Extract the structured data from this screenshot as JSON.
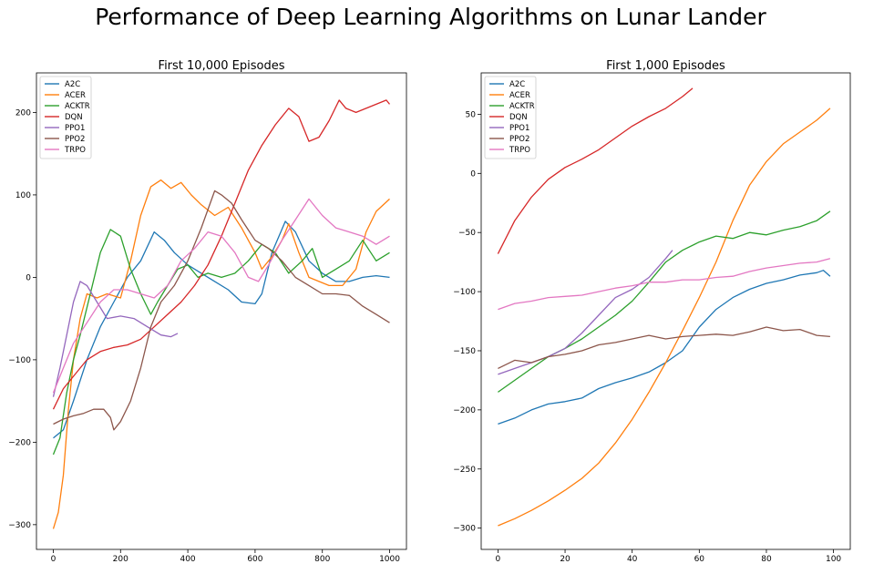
{
  "figure": {
    "title": "Performance of Deep Learning Algorithms on Lunar Lander"
  },
  "chart_data": [
    {
      "type": "line",
      "title": "First 10,000 Episodes",
      "xlabel": "",
      "ylabel": "",
      "xlim": [
        -50,
        1050
      ],
      "ylim": [
        -330,
        248
      ],
      "xticks": [
        0,
        200,
        400,
        600,
        800,
        1000
      ],
      "yticks": [
        -300,
        -200,
        -100,
        0,
        100,
        200
      ],
      "grid": false,
      "legend_position": "top-left",
      "series": [
        {
          "name": "A2C",
          "color": "#1f77b4",
          "x": [
            0,
            30,
            60,
            100,
            140,
            180,
            220,
            260,
            300,
            330,
            360,
            400,
            440,
            480,
            520,
            560,
            600,
            620,
            650,
            690,
            720,
            760,
            800,
            840,
            880,
            920,
            960,
            1000
          ],
          "y": [
            -195,
            -185,
            -150,
            -100,
            -60,
            -30,
            0,
            20,
            55,
            45,
            30,
            15,
            5,
            -5,
            -15,
            -30,
            -32,
            -20,
            30,
            68,
            55,
            20,
            5,
            -5,
            -5,
            0,
            2,
            0
          ]
        },
        {
          "name": "ACER",
          "color": "#ff7f0e",
          "x": [
            0,
            15,
            30,
            45,
            60,
            80,
            100,
            130,
            160,
            200,
            230,
            260,
            290,
            320,
            350,
            380,
            410,
            440,
            480,
            520,
            560,
            600,
            620,
            650,
            680,
            700,
            730,
            760,
            790,
            820,
            860,
            900,
            930,
            960,
            1000
          ],
          "y": [
            -305,
            -285,
            -240,
            -160,
            -100,
            -50,
            -20,
            -25,
            -20,
            -25,
            20,
            75,
            110,
            118,
            108,
            115,
            100,
            88,
            75,
            85,
            60,
            30,
            10,
            25,
            45,
            65,
            30,
            0,
            -5,
            -10,
            -10,
            10,
            55,
            80,
            95
          ]
        },
        {
          "name": "ACKTR",
          "color": "#2ca02c",
          "x": [
            0,
            20,
            40,
            60,
            80,
            110,
            140,
            170,
            200,
            230,
            260,
            290,
            310,
            340,
            370,
            400,
            430,
            460,
            500,
            540,
            580,
            620,
            660,
            700,
            740,
            770,
            800,
            840,
            880,
            920,
            960,
            1000
          ],
          "y": [
            -215,
            -195,
            -140,
            -100,
            -70,
            -20,
            30,
            58,
            50,
            10,
            -20,
            -45,
            -30,
            -10,
            10,
            15,
            0,
            5,
            0,
            5,
            20,
            40,
            30,
            5,
            20,
            35,
            0,
            10,
            20,
            45,
            20,
            30
          ]
        },
        {
          "name": "DQN",
          "color": "#d62728",
          "x": [
            0,
            30,
            60,
            100,
            140,
            180,
            220,
            260,
            300,
            340,
            380,
            420,
            460,
            500,
            540,
            580,
            620,
            660,
            700,
            730,
            760,
            790,
            820,
            850,
            870,
            900,
            930,
            960,
            990,
            1000
          ],
          "y": [
            -160,
            -135,
            -120,
            -100,
            -90,
            -85,
            -82,
            -75,
            -60,
            -45,
            -30,
            -10,
            15,
            50,
            90,
            130,
            160,
            185,
            205,
            195,
            165,
            170,
            190,
            215,
            205,
            200,
            205,
            210,
            215,
            210
          ]
        },
        {
          "name": "PPO1",
          "color": "#9467bd",
          "x": [
            0,
            20,
            40,
            60,
            80,
            100,
            130,
            160,
            200,
            240,
            280,
            320,
            350,
            370
          ],
          "y": [
            -145,
            -110,
            -70,
            -30,
            -5,
            -10,
            -30,
            -50,
            -47,
            -50,
            -60,
            -70,
            -72,
            -68
          ]
        },
        {
          "name": "PPO2",
          "color": "#8c564b",
          "x": [
            0,
            30,
            60,
            90,
            120,
            150,
            170,
            180,
            200,
            230,
            260,
            290,
            320,
            360,
            400,
            440,
            480,
            500,
            530,
            560,
            600,
            640,
            680,
            720,
            760,
            800,
            840,
            880,
            920,
            960,
            1000
          ],
          "y": [
            -178,
            -172,
            -168,
            -165,
            -160,
            -160,
            -170,
            -185,
            -175,
            -150,
            -110,
            -60,
            -30,
            -10,
            20,
            60,
            105,
            100,
            90,
            70,
            45,
            35,
            20,
            0,
            -10,
            -20,
            -20,
            -22,
            -35,
            -45,
            -55
          ]
        },
        {
          "name": "TRPO",
          "color": "#e377c2",
          "x": [
            0,
            30,
            60,
            100,
            140,
            180,
            220,
            260,
            300,
            340,
            380,
            420,
            460,
            500,
            540,
            580,
            610,
            640,
            680,
            720,
            760,
            800,
            840,
            880,
            920,
            960,
            1000
          ],
          "y": [
            -140,
            -110,
            -80,
            -55,
            -30,
            -15,
            -15,
            -20,
            -25,
            -10,
            20,
            35,
            55,
            50,
            30,
            0,
            -5,
            15,
            45,
            70,
            95,
            75,
            60,
            55,
            50,
            40,
            50
          ]
        }
      ]
    },
    {
      "type": "line",
      "title": "First 1,000 Episodes",
      "xlabel": "",
      "ylabel": "",
      "xlim": [
        -5,
        105
      ],
      "ylim": [
        -318,
        85
      ],
      "xticks": [
        0,
        20,
        40,
        60,
        80,
        100
      ],
      "yticks": [
        -300,
        -250,
        -200,
        -150,
        -100,
        -50,
        0,
        50
      ],
      "grid": false,
      "legend_position": "top-left",
      "series": [
        {
          "name": "A2C",
          "color": "#1f77b4",
          "x": [
            0,
            5,
            10,
            15,
            20,
            25,
            30,
            35,
            40,
            45,
            50,
            55,
            60,
            65,
            70,
            75,
            80,
            85,
            90,
            95,
            97,
            99
          ],
          "y": [
            -212,
            -207,
            -200,
            -195,
            -193,
            -190,
            -182,
            -177,
            -173,
            -168,
            -160,
            -150,
            -130,
            -115,
            -105,
            -98,
            -93,
            -90,
            -86,
            -84,
            -82,
            -87
          ]
        },
        {
          "name": "ACER",
          "color": "#ff7f0e",
          "x": [
            0,
            5,
            10,
            15,
            20,
            25,
            30,
            35,
            40,
            45,
            50,
            55,
            60,
            65,
            70,
            75,
            80,
            85,
            90,
            95,
            99
          ],
          "y": [
            -298,
            -292,
            -285,
            -277,
            -268,
            -258,
            -245,
            -228,
            -208,
            -185,
            -160,
            -133,
            -105,
            -75,
            -40,
            -10,
            10,
            25,
            35,
            45,
            55
          ]
        },
        {
          "name": "ACKTR",
          "color": "#2ca02c",
          "x": [
            0,
            5,
            10,
            15,
            20,
            25,
            30,
            35,
            40,
            45,
            50,
            55,
            60,
            65,
            70,
            75,
            80,
            85,
            90,
            95,
            99
          ],
          "y": [
            -185,
            -175,
            -165,
            -155,
            -148,
            -140,
            -130,
            -120,
            -108,
            -92,
            -75,
            -65,
            -58,
            -53,
            -55,
            -50,
            -52,
            -48,
            -45,
            -40,
            -32
          ]
        },
        {
          "name": "DQN",
          "color": "#d62728",
          "x": [
            0,
            5,
            10,
            15,
            20,
            25,
            30,
            35,
            40,
            45,
            50,
            55,
            58
          ],
          "y": [
            -68,
            -40,
            -20,
            -5,
            5,
            12,
            20,
            30,
            40,
            48,
            55,
            65,
            72
          ]
        },
        {
          "name": "PPO1",
          "color": "#9467bd",
          "x": [
            0,
            5,
            10,
            15,
            20,
            25,
            30,
            35,
            40,
            45,
            50,
            52
          ],
          "y": [
            -170,
            -165,
            -160,
            -155,
            -148,
            -135,
            -120,
            -105,
            -98,
            -88,
            -72,
            -65
          ]
        },
        {
          "name": "PPO2",
          "color": "#8c564b",
          "x": [
            0,
            5,
            10,
            15,
            20,
            25,
            30,
            35,
            40,
            45,
            50,
            55,
            60,
            65,
            70,
            75,
            80,
            85,
            90,
            95,
            99
          ],
          "y": [
            -165,
            -158,
            -160,
            -155,
            -153,
            -150,
            -145,
            -143,
            -140,
            -137,
            -140,
            -138,
            -137,
            -136,
            -137,
            -134,
            -130,
            -133,
            -132,
            -137,
            -138
          ]
        },
        {
          "name": "TRPO",
          "color": "#e377c2",
          "x": [
            0,
            5,
            10,
            15,
            20,
            25,
            30,
            35,
            40,
            45,
            50,
            55,
            60,
            65,
            70,
            75,
            80,
            85,
            90,
            95,
            99
          ],
          "y": [
            -115,
            -110,
            -108,
            -105,
            -104,
            -103,
            -100,
            -97,
            -95,
            -92,
            -92,
            -90,
            -90,
            -88,
            -87,
            -83,
            -80,
            -78,
            -76,
            -75,
            -72
          ]
        }
      ]
    }
  ]
}
